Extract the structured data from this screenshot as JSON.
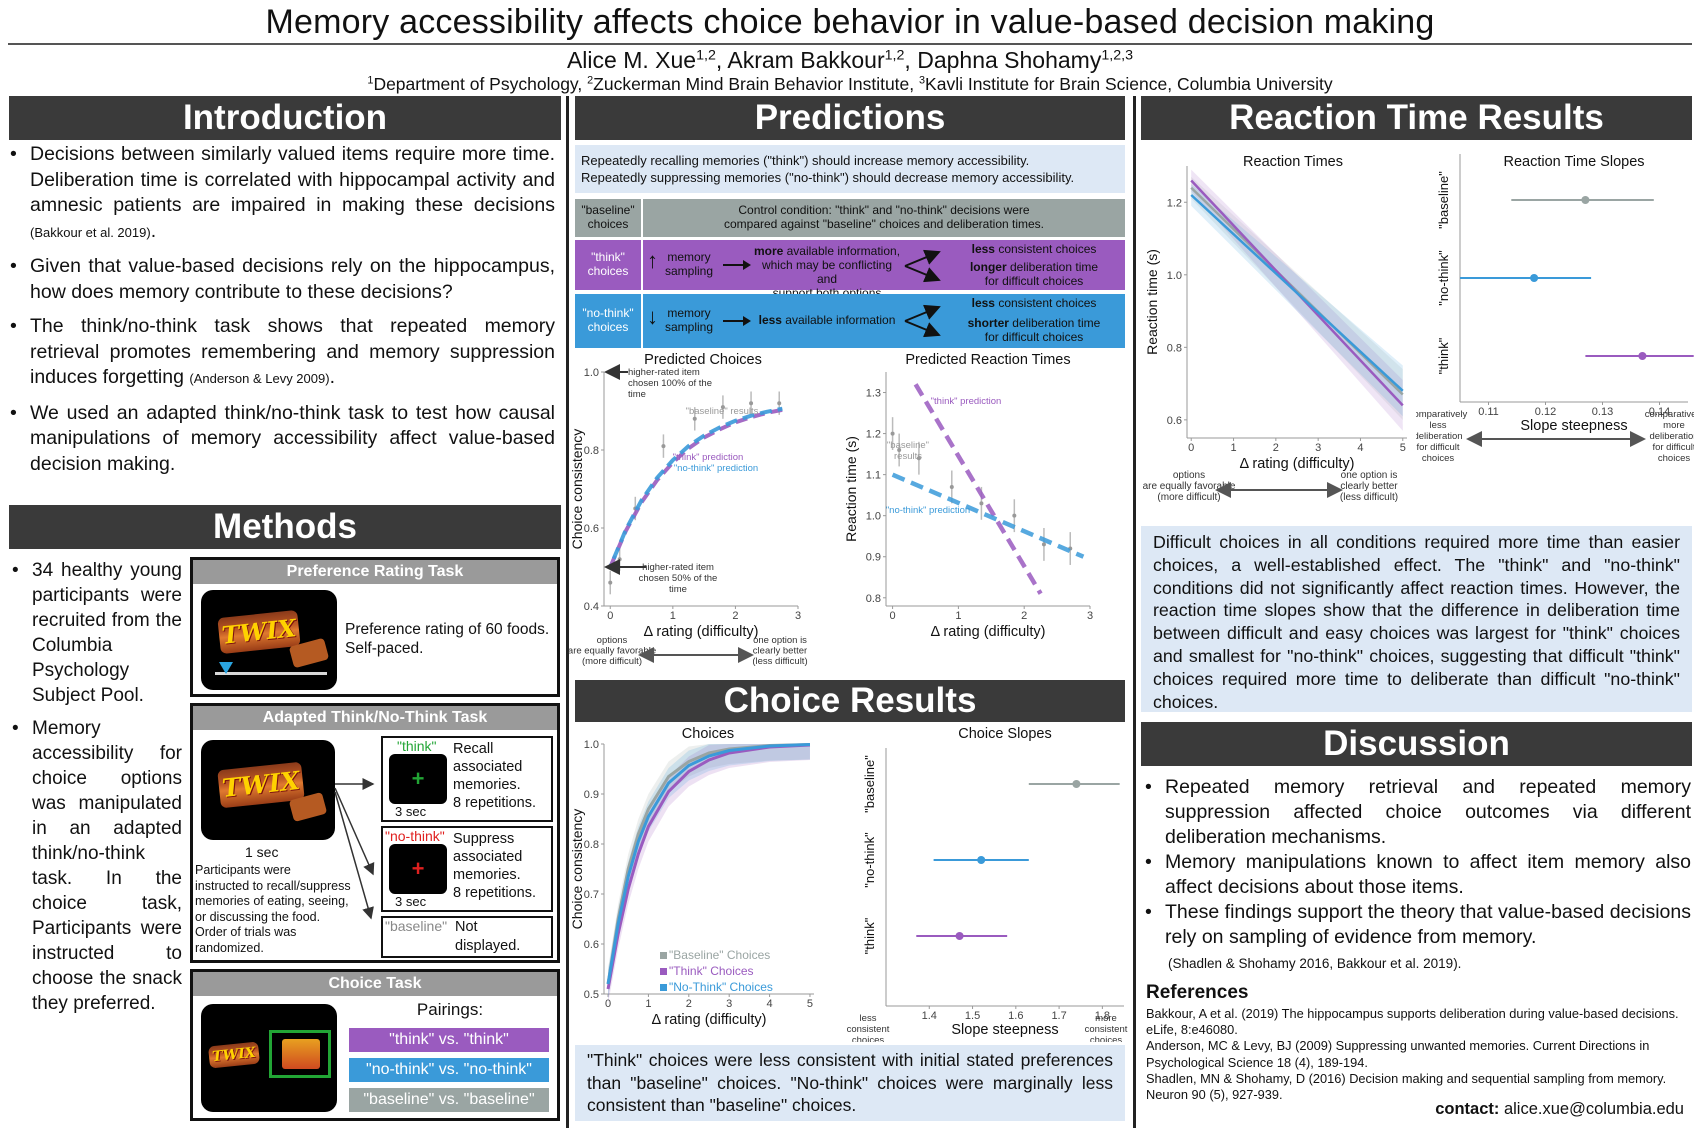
{
  "header": {
    "title": "Memory accessibility affects choice behavior in value-based decision making",
    "authors": [
      {
        "name": "Alice M. Xue",
        "sup": "1,2"
      },
      {
        "name": "Akram Bakkour",
        "sup": "1,2"
      },
      {
        "name": "Daphna Shohamy",
        "sup": "1,2,3"
      }
    ],
    "affiliations": [
      {
        "sup": "1",
        "text": "Department of Psychology,"
      },
      {
        "sup": "2",
        "text": "Zuckerman Mind Brain Behavior Institute,"
      },
      {
        "sup": "3",
        "text": "Kavli Institute for Brain Science, Columbia University"
      }
    ]
  },
  "introduction": {
    "heading": "Introduction",
    "bullets": [
      {
        "text": "Decisions between similarly valued items require more time. Deliberation time is correlated with hippocampal activity and amnesic patients are impaired in making these decisions",
        "cite": "(Bakkour et al. 2019)",
        "end": "."
      },
      {
        "text": "Given that value-based decisions rely on the hippocampus, how does memory contribute to these decisions?",
        "cite": "",
        "end": ""
      },
      {
        "text": "The think/no-think task shows that repeated memory retrieval promotes remembering and memory suppression induces forgetting",
        "cite": "(Anderson & Levy 2009)",
        "end": "."
      },
      {
        "text": "We used an adapted think/no-think task to test how causal manipulations of memory accessibility affect value-based decision making.",
        "cite": "",
        "end": ""
      }
    ]
  },
  "methods": {
    "heading": "Methods",
    "bullets": [
      "34 healthy young participants were recruited from the Columbia Psychology Subject Pool.",
      "Memory accessibility for choice options was manipulated in an adapted think/no-think task. In the choice task, Participants were instructed to choose the snack they preferred."
    ],
    "snack_logo": "TWIX",
    "rating_task": {
      "title": "Preference Rating Task",
      "text_line1": "Preference rating of 60 foods.",
      "text_line2": "Self-paced."
    },
    "tnt_task": {
      "title": "Adapted Think/No-Think Task",
      "duration": "1 sec",
      "description": [
        "Participants were",
        "instructed to recall/suppress",
        "memories of eating, seeing,",
        "or discussing the food.",
        "Order of trials was",
        "randomized."
      ],
      "think": {
        "label": "\"think\"",
        "lines": [
          "Recall",
          "associated",
          "memories.",
          "8 repetitions."
        ],
        "duration": "3 sec",
        "cross": "+",
        "color": "#22a535"
      },
      "nothink": {
        "label": "\"no-think\"",
        "lines": [
          "Suppress",
          "associated",
          "memories.",
          "8 repetitions."
        ],
        "duration": "3 sec",
        "cross": "+",
        "color": "#e0201f"
      },
      "baseline": {
        "label": "\"baseline\"",
        "lines": [
          "Not",
          "displayed."
        ]
      }
    },
    "choice_task": {
      "title": "Choice Task",
      "pairings_label": "Pairings:",
      "pairings": [
        {
          "label": "\"think\" vs. \"think\"",
          "color": "#9a5bbf"
        },
        {
          "label": "\"no-think\" vs. \"no-think\"",
          "color": "#3a9ad9"
        },
        {
          "label": "\"baseline\" vs. \"baseline\"",
          "color": "#9aa5a3"
        }
      ]
    }
  },
  "predictions": {
    "heading": "Predictions",
    "intro": [
      "Repeatedly recalling memories (\"think\") should increase memory accessibility.",
      "Repeatedly suppressing memories (\"no-think\") should decrease memory accessibility."
    ],
    "baseline_row": {
      "label": [
        "\"baseline\"",
        "choices"
      ],
      "text": [
        "Control condition: \"think\" and \"no-think\" decisions were",
        "compared against \"baseline\" choices and deliberation times."
      ]
    },
    "think_row": {
      "label": [
        "\"think\"",
        "choices"
      ],
      "arrow": "↑",
      "sampling": [
        "memory",
        "sampling"
      ],
      "info_bold": "more",
      "info_rest": [
        " available information,",
        "which may be conflicting and",
        "support both options"
      ],
      "out1_bold": "less",
      "out1_rest": " consistent choices",
      "out2_bold": "longer",
      "out2_rest": " deliberation time",
      "out2_line2": "for difficult choices"
    },
    "nothink_row": {
      "label": [
        "\"no-think\"",
        "choices"
      ],
      "arrow": "↓",
      "sampling": [
        "memory",
        "sampling"
      ],
      "info_bold": "less",
      "info_rest": " available information",
      "out1_bold": "less",
      "out1_rest": " consistent choices",
      "out2_bold": "shorter",
      "out2_rest": " deliberation time",
      "out2_line2": "for difficult choices"
    }
  },
  "colors": {
    "think": "#9a5bbf",
    "nothink": "#3a9ad9",
    "baseline": "#9aa5a3",
    "header": "#3a3a3a",
    "summary_bg": "#dde8f5"
  },
  "difficulty_annotation": {
    "left": [
      "options",
      "are equally favorable",
      "(more difficult)"
    ],
    "right": [
      "one option is",
      "clearly better",
      "(less difficult)"
    ]
  },
  "choice_results": {
    "heading": "Choice Results",
    "summary": "\"Think\" choices were less consistent with initial stated preferences than \"baseline\" choices. \"No-think\" choices were marginally less consistent than \"baseline\" choices."
  },
  "rt_results": {
    "heading": "Reaction Time Results",
    "summary": "Difficult choices in all conditions required more time than easier choices, a well-established effect. The \"think\" and \"no-think\" conditions did not significantly affect reaction times. However, the reaction time slopes show that the difference in deliberation time between difficult and easy choices was largest for \"think\" choices and smallest for \"no-think\" choices, suggesting that difficult \"think\" choices required more time to deliberate than difficult \"no-think\" choices."
  },
  "discussion": {
    "heading": "Discussion",
    "bullets": [
      "Repeated memory retrieval and repeated memory suppression affected choice outcomes via different deliberation mechanisms.",
      "Memory manipulations known to affect item memory also affect decisions about those items.",
      "These findings support the theory that value-based decisions rely on sampling of evidence from memory."
    ],
    "citation": "(Shadlen & Shohamy 2016, Bakkour et al. 2019).",
    "references_heading": "References",
    "references": [
      "Bakkour, A et al. (2019) The hippocampus supports deliberation during value-based decisions. eLife, 8:e46080.",
      "Anderson, MC & Levy, BJ (2009) Suppressing unwanted memories. Current Directions in Psychological Science 18 (4), 189-194.",
      "Shadlen, MN & Shohamy, D (2016) Decision making and sequential sampling from memory. Neuron 90 (5), 927-939."
    ],
    "contact_label": "contact:",
    "contact_email": "alice.xue@columbia.edu"
  },
  "chart_data": [
    {
      "id": "predicted_choices",
      "type": "line",
      "title": "Predicted Choices",
      "xlabel": "Δ rating (difficulty)",
      "ylabel": "Choice consistency",
      "xlim": [
        -0.1,
        3.0
      ],
      "ylim": [
        0.4,
        1.0
      ],
      "xticks": [
        0,
        1,
        2,
        3
      ],
      "yticks": [
        0.4,
        0.6,
        0.8,
        1.0
      ],
      "ytick_labels": [
        "0.4",
        "0.6",
        "0.8",
        "1.0"
      ],
      "baseline_points": [
        {
          "x": 0.0,
          "y": 0.46,
          "err": 0.03
        },
        {
          "x": 0.15,
          "y": 0.52,
          "err": 0.03
        },
        {
          "x": 0.4,
          "y": 0.65,
          "err": 0.03
        },
        {
          "x": 0.85,
          "y": 0.81,
          "err": 0.03
        },
        {
          "x": 1.35,
          "y": 0.88,
          "err": 0.03
        },
        {
          "x": 1.8,
          "y": 0.91,
          "err": 0.03
        },
        {
          "x": 2.25,
          "y": 0.92,
          "err": 0.03
        },
        {
          "x": 2.7,
          "y": 0.92,
          "err": 0.03
        }
      ],
      "series": [
        {
          "name": "\"think\" prediction",
          "x": [
            0,
            0.25,
            0.5,
            0.75,
            1.0,
            1.25,
            1.5,
            1.75,
            2.0,
            2.25,
            2.5,
            2.75
          ],
          "y": [
            0.5,
            0.593,
            0.666,
            0.723,
            0.768,
            0.804,
            0.832,
            0.853,
            0.871,
            0.884,
            0.895,
            0.903
          ]
        },
        {
          "name": "\"no-think\" prediction",
          "x": [
            0,
            0.25,
            0.5,
            0.75,
            1.0,
            1.25,
            1.5,
            1.75,
            2.0,
            2.25,
            2.5,
            2.75
          ],
          "y": [
            0.5,
            0.596,
            0.671,
            0.729,
            0.774,
            0.81,
            0.837,
            0.858,
            0.875,
            0.888,
            0.898,
            0.906
          ]
        }
      ],
      "annotations": [
        "higher-rated item chosen 100% of the time",
        "\"baseline\" results",
        "higher-rated item chosen 50% of the time"
      ]
    },
    {
      "id": "predicted_rt",
      "type": "line",
      "title": "Predicted Reaction Times",
      "xlabel": "Δ rating (difficulty)",
      "ylabel": "Reaction time (s)",
      "xlim": [
        -0.1,
        3.0
      ],
      "ylim": [
        0.78,
        1.35
      ],
      "xticks": [
        0,
        1,
        2,
        3
      ],
      "yticks": [
        0.8,
        0.9,
        1.0,
        1.1,
        1.2,
        1.3
      ],
      "ytick_labels": [
        "0.8",
        "0.9",
        "1.0",
        "1.1",
        "1.2",
        "1.3"
      ],
      "baseline_points": [
        {
          "x": 0.0,
          "y": 1.2,
          "err": 0.04
        },
        {
          "x": 0.1,
          "y": 1.16,
          "err": 0.04
        },
        {
          "x": 0.4,
          "y": 1.14,
          "err": 0.04
        },
        {
          "x": 0.9,
          "y": 1.07,
          "err": 0.04
        },
        {
          "x": 1.35,
          "y": 1.03,
          "err": 0.04
        },
        {
          "x": 1.85,
          "y": 1.0,
          "err": 0.04
        },
        {
          "x": 2.3,
          "y": 0.93,
          "err": 0.04
        },
        {
          "x": 2.7,
          "y": 0.92,
          "err": 0.04
        }
      ],
      "series": [
        {
          "name": "\"think\" prediction",
          "x": [
            0.35,
            2.25
          ],
          "y": [
            1.32,
            0.81
          ]
        },
        {
          "name": "\"no-think\" prediction",
          "x": [
            0.0,
            2.9
          ],
          "y": [
            1.1,
            0.9
          ]
        }
      ],
      "annotations": [
        "\"baseline\" results"
      ]
    },
    {
      "id": "choices",
      "type": "line",
      "title": "Choices",
      "xlabel": "Δ rating (difficulty)",
      "ylabel": "Choice consistency",
      "xlim": [
        -0.1,
        5.1
      ],
      "ylim": [
        0.5,
        1.0
      ],
      "xticks": [
        0,
        1,
        2,
        3,
        4,
        5
      ],
      "yticks": [
        0.5,
        0.6,
        0.7,
        0.8,
        0.9,
        1.0
      ],
      "ytick_labels": [
        "0.5",
        "0.6",
        "0.7",
        "0.8",
        "0.9",
        "1.0"
      ],
      "series": [
        {
          "name": "\"Baseline\" Choices",
          "x": [
            0,
            0.25,
            0.5,
            0.75,
            1,
            1.5,
            2,
            2.5,
            3,
            4,
            5
          ],
          "y": [
            0.52,
            0.65,
            0.75,
            0.82,
            0.87,
            0.935,
            0.965,
            0.982,
            0.99,
            0.997,
            0.999
          ]
        },
        {
          "name": "\"Think\" Choices",
          "x": [
            0,
            0.25,
            0.5,
            0.75,
            1,
            1.5,
            2,
            2.5,
            3,
            4,
            5
          ],
          "y": [
            0.51,
            0.62,
            0.71,
            0.78,
            0.835,
            0.905,
            0.945,
            0.968,
            0.982,
            0.994,
            0.998
          ]
        },
        {
          "name": "\"No-Think\" Choices",
          "x": [
            0,
            0.25,
            0.5,
            0.75,
            1,
            1.5,
            2,
            2.5,
            3,
            4,
            5
          ],
          "y": [
            0.52,
            0.64,
            0.735,
            0.805,
            0.855,
            0.922,
            0.957,
            0.976,
            0.987,
            0.996,
            0.999
          ]
        }
      ]
    },
    {
      "id": "choice_slopes",
      "type": "scatter",
      "title": "Choice Slopes",
      "xlabel": "Slope steepness",
      "xlim": [
        1.3,
        1.85
      ],
      "xticks": [
        1.4,
        1.5,
        1.6,
        1.7,
        1.8
      ],
      "categories": [
        "\"baseline\"",
        "\"no-think\"",
        "\"think\""
      ],
      "values": [
        1.74,
        1.52,
        1.47
      ],
      "ci": [
        [
          1.63,
          1.84
        ],
        [
          1.41,
          1.63
        ],
        [
          1.37,
          1.58
        ]
      ],
      "x_end_labels": {
        "left": [
          "less",
          "consistent",
          "choices"
        ],
        "right": [
          "more",
          "consistent",
          "choices"
        ]
      }
    },
    {
      "id": "reaction_times",
      "type": "line",
      "title": "Reaction Times",
      "xlabel": "Δ rating (difficulty)",
      "ylabel": "Reaction time (s)",
      "xlim": [
        -0.1,
        5.1
      ],
      "ylim": [
        0.55,
        1.3
      ],
      "xticks": [
        0,
        1,
        2,
        3,
        4,
        5
      ],
      "yticks": [
        0.6,
        0.8,
        1.0,
        1.2
      ],
      "ytick_labels": [
        "0.6",
        "0.8",
        "1.0",
        "1.2"
      ],
      "series": [
        {
          "name": "\"baseline\"",
          "x": [
            0,
            5
          ],
          "y": [
            1.24,
            0.67
          ]
        },
        {
          "name": "\"think\"",
          "x": [
            0,
            5
          ],
          "y": [
            1.26,
            0.64
          ]
        },
        {
          "name": "\"no-think\"",
          "x": [
            0,
            5
          ],
          "y": [
            1.22,
            0.68
          ]
        }
      ]
    },
    {
      "id": "rt_slopes",
      "type": "scatter",
      "title": "Reaction Time Slopes",
      "xlabel": "Slope steepness",
      "xlim": [
        0.105,
        0.145
      ],
      "xticks": [
        0.11,
        0.12,
        0.13,
        0.14
      ],
      "categories": [
        "\"baseline\"",
        "\"no-think\"",
        "\"think\""
      ],
      "values": [
        0.127,
        0.118,
        0.137
      ],
      "ci": [
        [
          0.114,
          0.139
        ],
        [
          0.105,
          0.128
        ],
        [
          0.127,
          0.146
        ]
      ],
      "x_end_labels": {
        "left": [
          "comparatively",
          "less",
          "deliberation",
          "for difficult",
          "choices"
        ],
        "right": [
          "comparatively",
          "more",
          "deliberation",
          "for difficult",
          "choices"
        ]
      }
    }
  ]
}
